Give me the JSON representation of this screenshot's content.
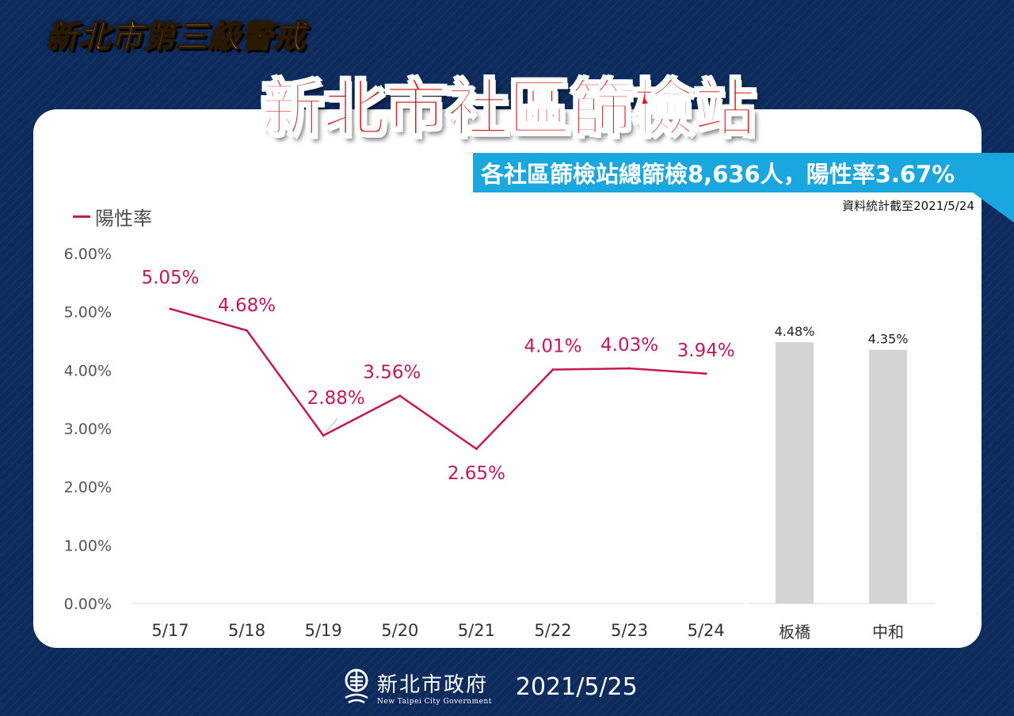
{
  "header": {
    "alert_title": "新北市第三級警戒",
    "main_title": "新北市社區篩檢站",
    "banner": "各社區篩檢站總篩檢8,636人，陽性率3.67%",
    "date_note": "資料統計截至2021/5/24"
  },
  "legend": {
    "label": "陽性率"
  },
  "colors": {
    "line": "#c2185b",
    "bar": "#d4d4d4",
    "axis_text": "#555555",
    "banner": "#1aa6de",
    "title_red": "#d81e1e",
    "top_title_yellow": "#f6d24a",
    "background": "#0d2a5c"
  },
  "chart_data": [
    {
      "type": "line",
      "title": "",
      "xlabel": "",
      "ylabel": "",
      "categories": [
        "5/17",
        "5/18",
        "5/19",
        "5/20",
        "5/21",
        "5/22",
        "5/23",
        "5/24"
      ],
      "series": [
        {
          "name": "陽性率",
          "values": [
            5.05,
            4.68,
            2.88,
            3.56,
            2.65,
            4.01,
            4.03,
            3.94
          ],
          "labels": [
            "5.05%",
            "4.68%",
            "2.88%",
            "3.56%",
            "2.65%",
            "4.01%",
            "4.03%",
            "3.94%"
          ]
        }
      ],
      "yticks": [
        "0.00%",
        "1.00%",
        "2.00%",
        "3.00%",
        "4.00%",
        "5.00%",
        "6.00%"
      ],
      "ylim": [
        0,
        6
      ],
      "grid": false,
      "legend": "top-left"
    },
    {
      "type": "bar",
      "title": "",
      "categories": [
        "板橋",
        "中和"
      ],
      "values": [
        4.48,
        4.35
      ],
      "labels": [
        "4.48%",
        "4.35%"
      ],
      "ylim": [
        0,
        6
      ]
    }
  ],
  "footer": {
    "org_name": "新北市政府",
    "org_name_en": "New Taipei City Government",
    "date": "2021/5/25",
    "logo_icon": "new-taipei-city-logo-icon"
  }
}
